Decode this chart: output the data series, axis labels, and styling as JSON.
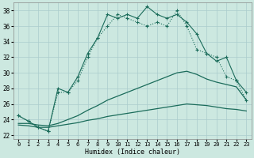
{
  "xlabel": "Humidex (Indice chaleur)",
  "xlim": [
    -0.5,
    23.5
  ],
  "ylim": [
    21.5,
    39.0
  ],
  "bg_color": "#cce8e0",
  "line_color": "#1a6b5a",
  "grid_color": "#aacccc",
  "xticks": [
    0,
    1,
    2,
    3,
    4,
    5,
    6,
    7,
    8,
    9,
    10,
    11,
    12,
    13,
    14,
    15,
    16,
    17,
    18,
    19,
    20,
    21,
    22,
    23
  ],
  "yticks": [
    22,
    24,
    26,
    28,
    30,
    32,
    34,
    36,
    38
  ],
  "series1": [
    24.5,
    23.8,
    23.0,
    22.5,
    28.0,
    27.5,
    29.5,
    32.5,
    34.5,
    37.5,
    37.0,
    37.5,
    37.0,
    38.5,
    37.5,
    37.0,
    37.5,
    36.5,
    35.0,
    32.5,
    31.5,
    32.0,
    29.0,
    27.5
  ],
  "series2": [
    24.5,
    23.8,
    23.0,
    22.5,
    27.5,
    27.5,
    29.0,
    32.0,
    34.5,
    36.0,
    37.5,
    37.0,
    36.5,
    36.0,
    36.5,
    36.0,
    38.0,
    36.0,
    33.0,
    32.5,
    32.0,
    29.5,
    29.0,
    26.5
  ],
  "series3": [
    23.5,
    23.5,
    23.3,
    23.2,
    23.5,
    24.0,
    24.5,
    25.2,
    25.8,
    26.5,
    27.0,
    27.5,
    28.0,
    28.5,
    29.0,
    29.5,
    30.0,
    30.2,
    29.8,
    29.2,
    28.8,
    28.5,
    28.2,
    26.5
  ],
  "series4": [
    23.3,
    23.2,
    23.0,
    23.0,
    23.2,
    23.4,
    23.6,
    23.9,
    24.1,
    24.4,
    24.6,
    24.8,
    25.0,
    25.2,
    25.4,
    25.6,
    25.8,
    26.0,
    25.9,
    25.8,
    25.6,
    25.4,
    25.3,
    25.1
  ]
}
